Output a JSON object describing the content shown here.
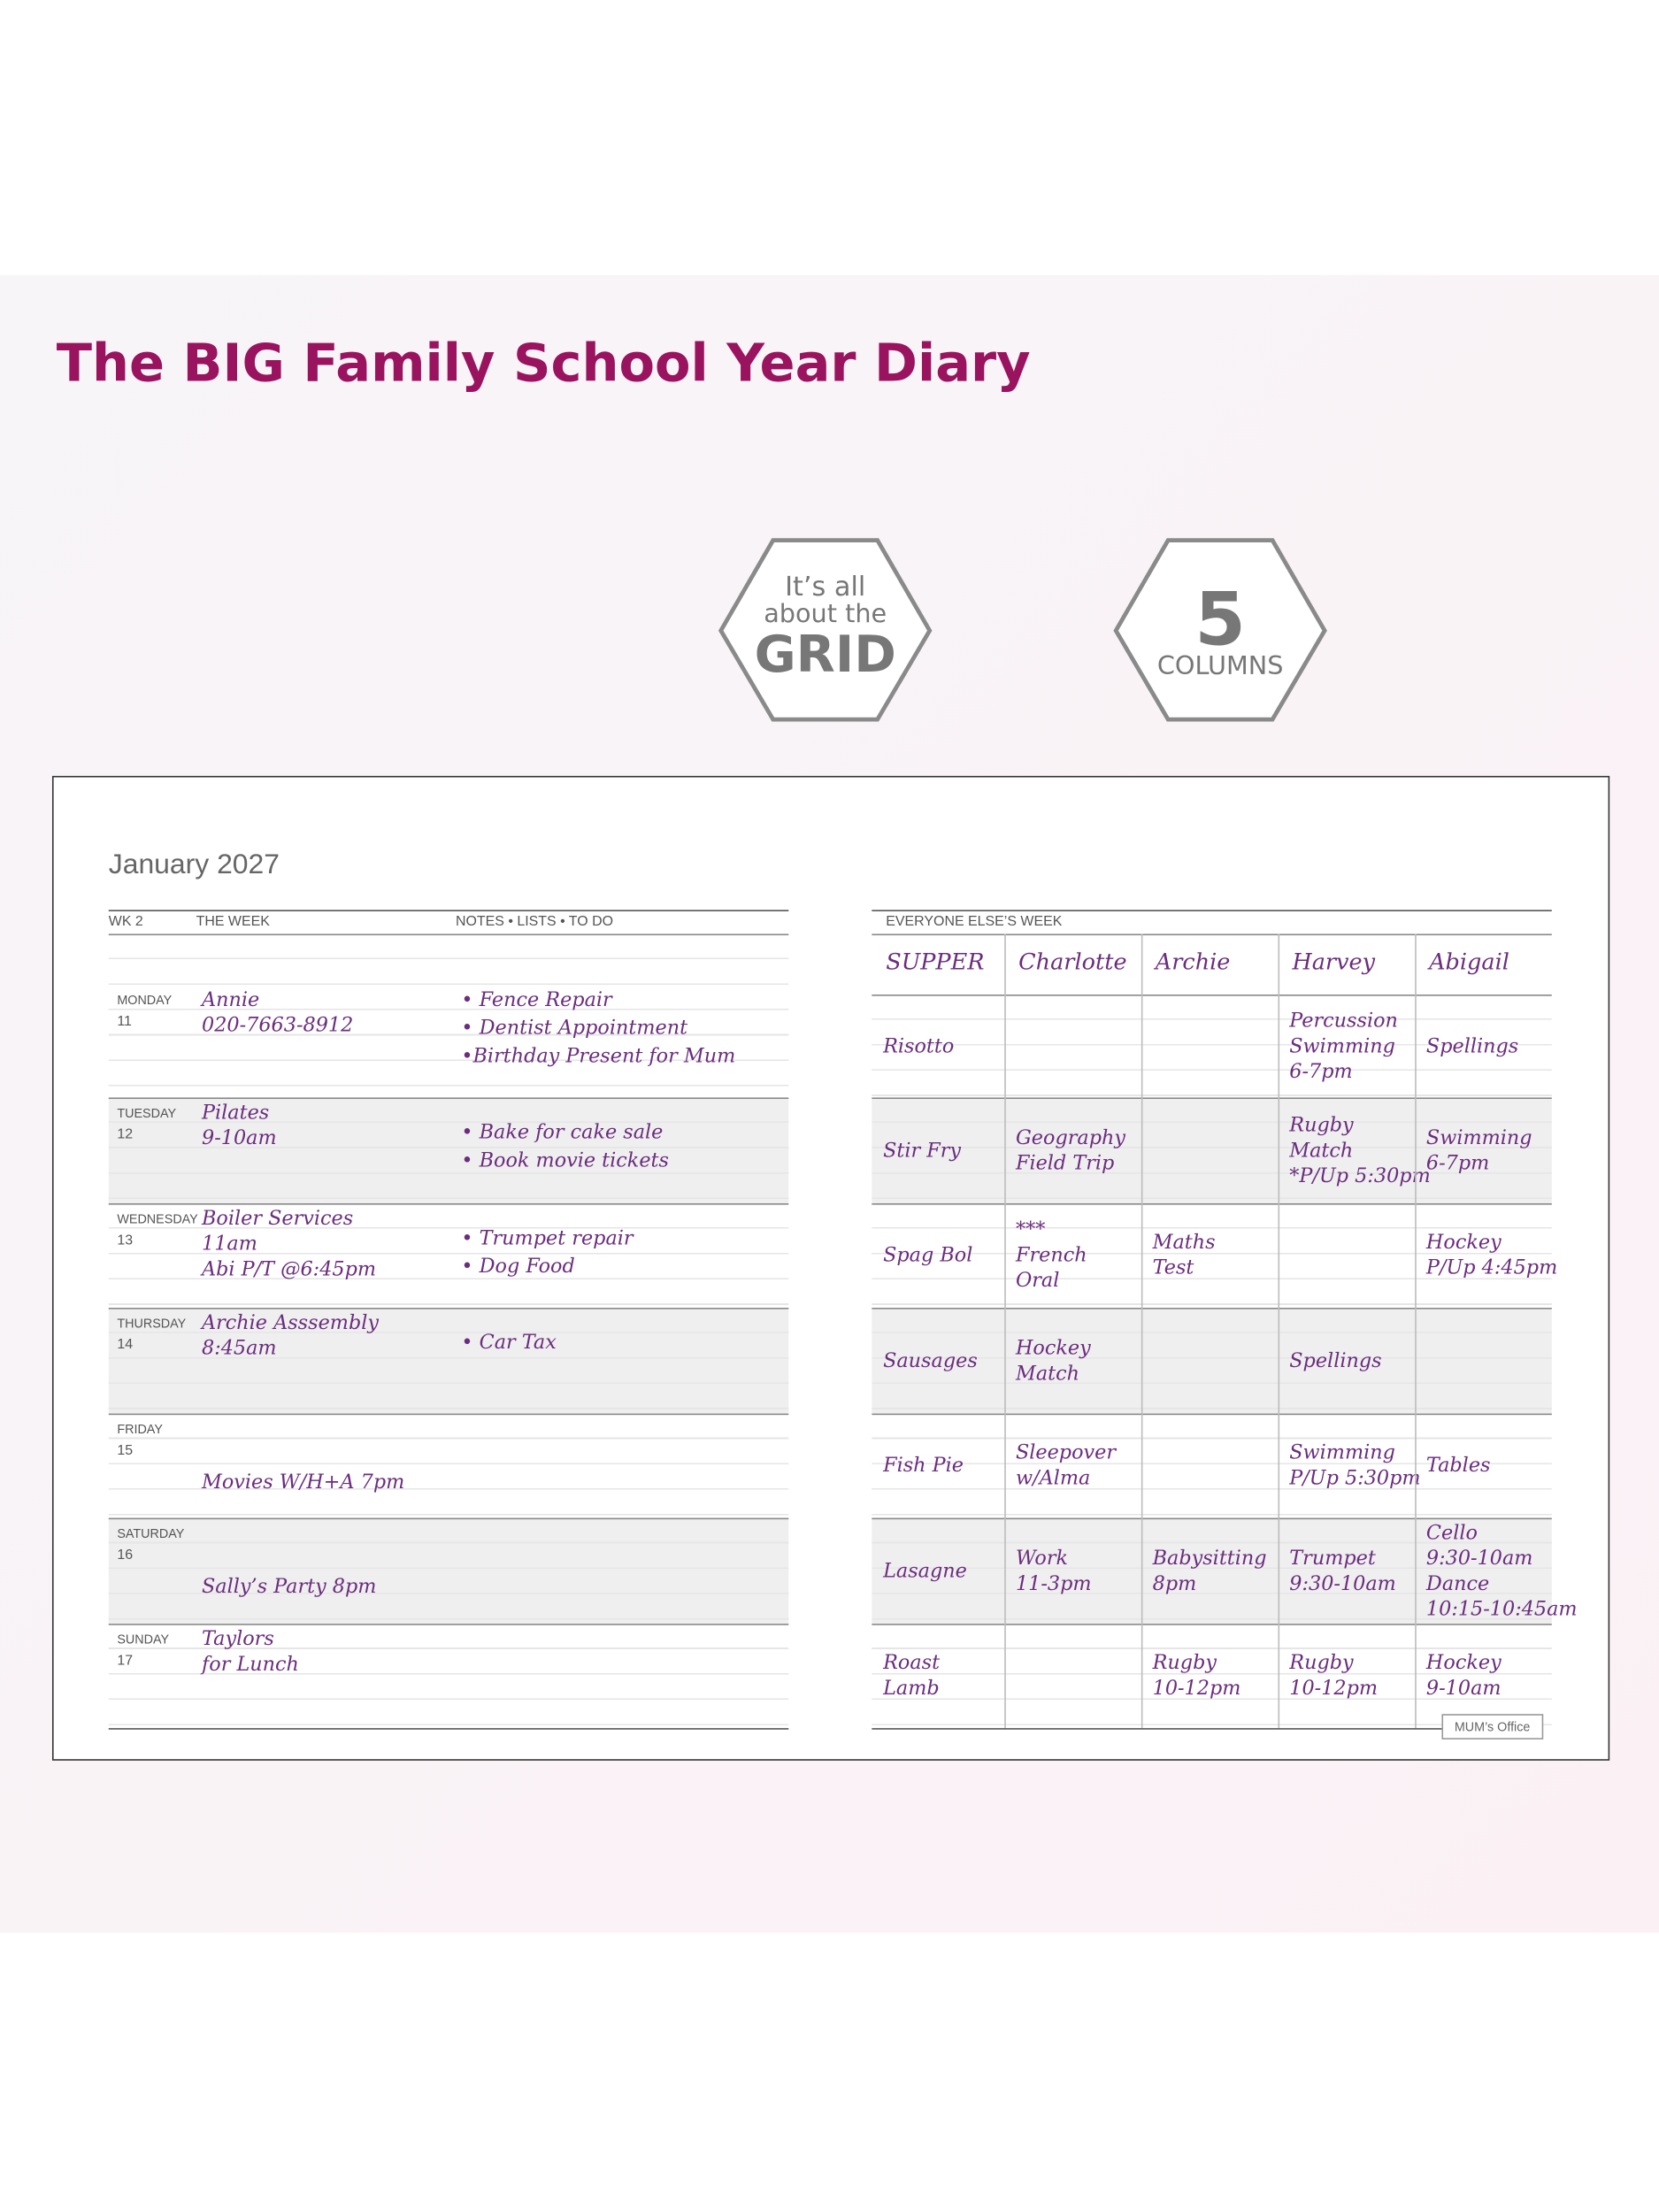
{
  "title": "The BIG Family School Year Diary",
  "badges": [
    {
      "lines": [
        "It’s all",
        "about the",
        "GRID"
      ]
    },
    {
      "lines": [
        "5",
        "COLUMNS"
      ]
    }
  ],
  "diary": {
    "month": "January 2027",
    "left_header": [
      "WK 2",
      "THE WEEK",
      "NOTES • LISTS • TO DO"
    ],
    "days": [
      {
        "day": "MONDAY",
        "date": "11",
        "week": [
          "Annie",
          "020-7663-8912"
        ],
        "notes": [
          "• Fence Repair",
          "• Dentist Appointment",
          "•Birthday Present for Mum"
        ]
      },
      {
        "day": "TUESDAY",
        "date": "12",
        "week": [
          "Pilates",
          "9-10am"
        ],
        "notes": [
          "• Bake for cake sale",
          "• Book movie tickets"
        ]
      },
      {
        "day": "WEDNESDAY",
        "date": "13",
        "week": [
          "Boiler Services",
          "11am",
          "Abi P/T @6:45pm"
        ],
        "notes": [
          "• Trumpet repair",
          "• Dog Food"
        ]
      },
      {
        "day": "THURSDAY",
        "date": "14",
        "week": [
          "Archie Asssembly",
          "8:45am"
        ],
        "notes": [
          "• Car Tax"
        ]
      },
      {
        "day": "FRIDAY",
        "date": "15",
        "week": [
          "Movies W/H+A 7pm"
        ],
        "notes": []
      },
      {
        "day": "SATURDAY",
        "date": "16",
        "week": [
          "Sally’s Party 8pm"
        ],
        "notes": []
      },
      {
        "day": "SUNDAY",
        "date": "17",
        "week": [
          "Taylors",
          "for Lunch"
        ],
        "notes": []
      }
    ],
    "right_header": "EVERYONE ELSE’S WEEK",
    "columns": [
      "SUPPER",
      "Charlotte",
      "Archie",
      "Harvey",
      "Abigail"
    ],
    "rows": [
      [
        [
          "Risotto"
        ],
        [],
        [],
        [
          "Percussion",
          "Swimming",
          "6-7pm"
        ],
        [
          "Spellings"
        ]
      ],
      [
        [
          "Stir Fry"
        ],
        [
          "Geography",
          "Field Trip"
        ],
        [],
        [
          "Rugby",
          "Match",
          "*P/Up 5:30pm"
        ],
        [
          "Swimming",
          "6-7pm"
        ]
      ],
      [
        [
          "Spag Bol"
        ],
        [
          "***",
          "French",
          "Oral"
        ],
        [
          "Maths",
          "Test"
        ],
        [],
        [
          "Hockey",
          "P/Up 4:45pm"
        ]
      ],
      [
        [
          "Sausages"
        ],
        [
          "Hockey",
          "Match"
        ],
        [],
        [
          "Spellings"
        ],
        []
      ],
      [
        [
          "Fish Pie"
        ],
        [
          "Sleepover",
          "w/Alma"
        ],
        [],
        [
          "Swimming",
          "P/Up 5:30pm"
        ],
        [
          "Tables"
        ]
      ],
      [
        [
          "Lasagne"
        ],
        [
          "Work",
          "11-3pm"
        ],
        [
          "Babysitting",
          "8pm"
        ],
        [
          "Trumpet",
          "9:30-10am"
        ],
        [
          "Cello",
          "9:30-10am",
          "Dance",
          "10:15-10:45am"
        ]
      ],
      [
        [
          "Roast",
          "Lamb"
        ],
        [],
        [
          "Rugby",
          "10-12pm"
        ],
        [
          "Rugby",
          "10-12pm"
        ],
        [
          "Hockey",
          "9-10am"
        ]
      ]
    ],
    "tab": "MUM’s Office"
  }
}
